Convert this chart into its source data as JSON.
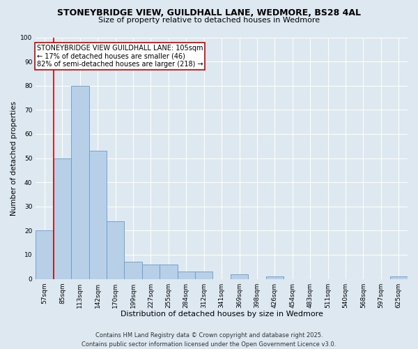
{
  "title1": "STONEYBRIDGE VIEW, GUILDHALL LANE, WEDMORE, BS28 4AL",
  "title2": "Size of property relative to detached houses in Wedmore",
  "xlabel": "Distribution of detached houses by size in Wedmore",
  "ylabel": "Number of detached properties",
  "categories": [
    "57sqm",
    "85sqm",
    "113sqm",
    "142sqm",
    "170sqm",
    "199sqm",
    "227sqm",
    "255sqm",
    "284sqm",
    "312sqm",
    "341sqm",
    "369sqm",
    "398sqm",
    "426sqm",
    "454sqm",
    "483sqm",
    "511sqm",
    "540sqm",
    "568sqm",
    "597sqm",
    "625sqm"
  ],
  "values": [
    20,
    50,
    80,
    53,
    24,
    7,
    6,
    6,
    3,
    3,
    0,
    2,
    0,
    1,
    0,
    0,
    0,
    0,
    0,
    0,
    1
  ],
  "bar_color": "#b8cfe8",
  "bar_edge_color": "#6699cc",
  "vline_color": "#cc0000",
  "vline_pos": 0.5,
  "annotation_text": "STONEYBRIDGE VIEW GUILDHALL LANE: 105sqm\n← 17% of detached houses are smaller (46)\n82% of semi-detached houses are larger (218) →",
  "annotation_box_color": "#ffffff",
  "annotation_box_edgecolor": "#cc0000",
  "ylim": [
    0,
    100
  ],
  "yticks": [
    0,
    10,
    20,
    30,
    40,
    50,
    60,
    70,
    80,
    90,
    100
  ],
  "bg_color": "#dde8f0",
  "plot_bg_color": "#dde8f0",
  "footer": "Contains HM Land Registry data © Crown copyright and database right 2025.\nContains public sector information licensed under the Open Government Licence v3.0.",
  "title_fontsize": 9,
  "subtitle_fontsize": 8,
  "tick_fontsize": 6.5,
  "ylabel_fontsize": 7.5,
  "xlabel_fontsize": 8,
  "footer_fontsize": 6,
  "annotation_fontsize": 7
}
